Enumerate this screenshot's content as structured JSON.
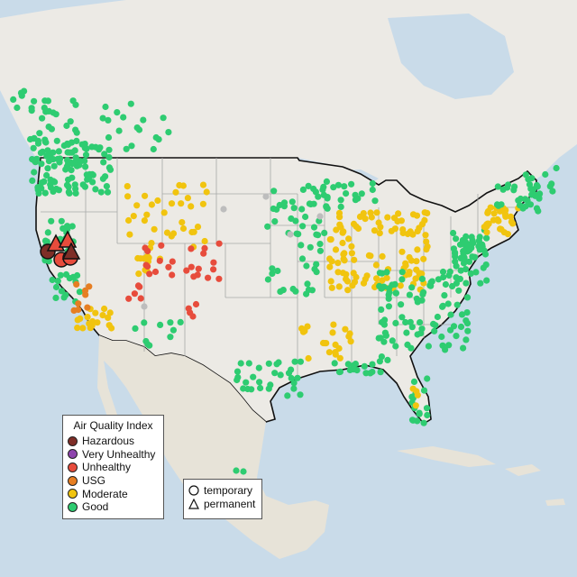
{
  "map": {
    "colors": {
      "water": "#c9dbe9",
      "land": "#eceae5",
      "land_mexico": "#e7e3d8",
      "state_border": "#a8a8a8",
      "country_border": "#111111"
    },
    "site_types": [
      "temporary",
      "permanent"
    ],
    "monitor_summary": {
      "good_sites": "many",
      "regions_unhealthy": [
        "northern-california",
        "utah-colorado"
      ]
    }
  },
  "legend": {
    "title": "Air Quality Index",
    "categories": [
      {
        "label": "Hazardous",
        "color": "#7e2e27"
      },
      {
        "label": "Very Unhealthy",
        "color": "#8e44ad"
      },
      {
        "label": "Unhealthy",
        "color": "#e74c3c"
      },
      {
        "label": "USG",
        "color": "#e67e22"
      },
      {
        "label": "Moderate",
        "color": "#f1c40f"
      },
      {
        "label": "Good",
        "color": "#2ecc71"
      }
    ]
  },
  "type_legend": {
    "temporary": "temporary",
    "permanent": "permanent"
  }
}
